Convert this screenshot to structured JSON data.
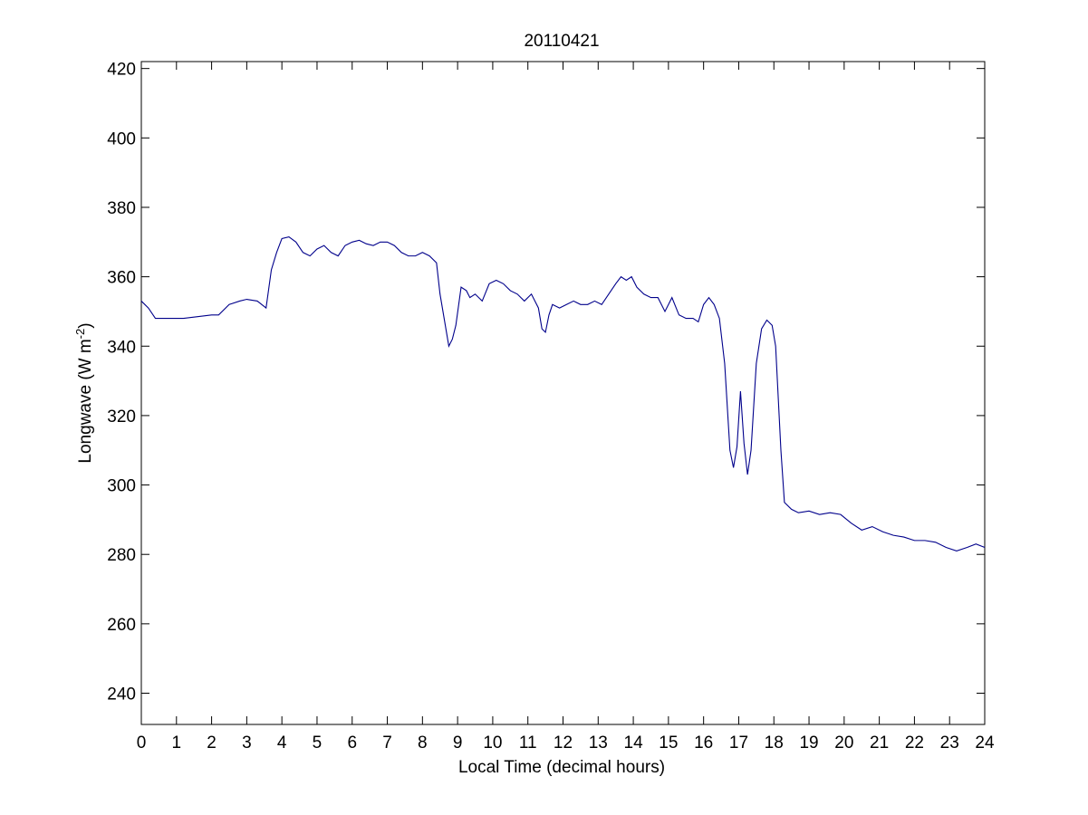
{
  "chart_data": {
    "type": "line",
    "title": "20110421",
    "xlabel": "Local Time (decimal hours)",
    "ylabel": {
      "main": "Longwave (W m",
      "superscript": "-2",
      "suffix": ")"
    },
    "xlim": [
      0,
      24
    ],
    "ylim": [
      231,
      422
    ],
    "xticks": [
      0,
      1,
      2,
      3,
      4,
      5,
      6,
      7,
      8,
      9,
      10,
      11,
      12,
      13,
      14,
      15,
      16,
      17,
      18,
      19,
      20,
      21,
      22,
      23,
      24
    ],
    "yticks": [
      240,
      260,
      280,
      300,
      320,
      340,
      360,
      380,
      400,
      420
    ],
    "grid": false,
    "line_color": "#00008b",
    "series": [
      {
        "x": [
          0,
          0.2,
          0.4,
          0.8,
          1.2,
          1.6,
          2.0,
          2.2,
          2.5,
          2.8,
          3.0,
          3.3,
          3.55,
          3.7,
          3.85,
          4.0,
          4.2,
          4.4,
          4.6,
          4.8,
          5.0,
          5.2,
          5.4,
          5.6,
          5.8,
          6.0,
          6.2,
          6.4,
          6.6,
          6.8,
          7.0,
          7.2,
          7.4,
          7.6,
          7.8,
          8.0,
          8.2,
          8.4,
          8.5,
          8.65,
          8.75,
          8.85,
          8.95,
          9.1,
          9.25,
          9.35,
          9.5,
          9.7,
          9.9,
          10.1,
          10.3,
          10.5,
          10.7,
          10.9,
          11.1,
          11.3,
          11.4,
          11.5,
          11.6,
          11.7,
          11.9,
          12.1,
          12.3,
          12.5,
          12.7,
          12.9,
          13.1,
          13.3,
          13.5,
          13.65,
          13.8,
          13.95,
          14.1,
          14.3,
          14.5,
          14.7,
          14.9,
          15.1,
          15.3,
          15.5,
          15.7,
          15.85,
          16.0,
          16.15,
          16.3,
          16.45,
          16.6,
          16.75,
          16.85,
          16.95,
          17.05,
          17.15,
          17.25,
          17.35,
          17.5,
          17.65,
          17.8,
          17.95,
          18.05,
          18.2,
          18.3,
          18.5,
          18.7,
          19.0,
          19.3,
          19.6,
          19.9,
          20.2,
          20.5,
          20.8,
          21.1,
          21.4,
          21.7,
          22.0,
          22.3,
          22.6,
          22.9,
          23.2,
          23.5,
          23.75,
          24.0
        ],
        "y": [
          353,
          351,
          348,
          348,
          348,
          348.5,
          349,
          349,
          352,
          353,
          353.5,
          353,
          351,
          362,
          367,
          371,
          371.5,
          370,
          367,
          366,
          368,
          369,
          367,
          366,
          369,
          370,
          370.5,
          369.5,
          369,
          370,
          370,
          369,
          367,
          366,
          366,
          367,
          366,
          364,
          355,
          346,
          340,
          342,
          346,
          357,
          356,
          354,
          355,
          353,
          358,
          359,
          358,
          356,
          355,
          353,
          355,
          351,
          345,
          344,
          349,
          352,
          351,
          352,
          353,
          352,
          352,
          353,
          352,
          355,
          358,
          360,
          359,
          360,
          357,
          355,
          354,
          354,
          350,
          354,
          349,
          348,
          348,
          347,
          352,
          354,
          352,
          348,
          335,
          310,
          305,
          311,
          327,
          312,
          303,
          310,
          335,
          345,
          347.5,
          346,
          340,
          310,
          295,
          293,
          292,
          292.5,
          291.5,
          292,
          291.5,
          289,
          287,
          288,
          286.5,
          285.5,
          285,
          284,
          284,
          283.5,
          282,
          281,
          282,
          283,
          282
        ]
      }
    ]
  }
}
